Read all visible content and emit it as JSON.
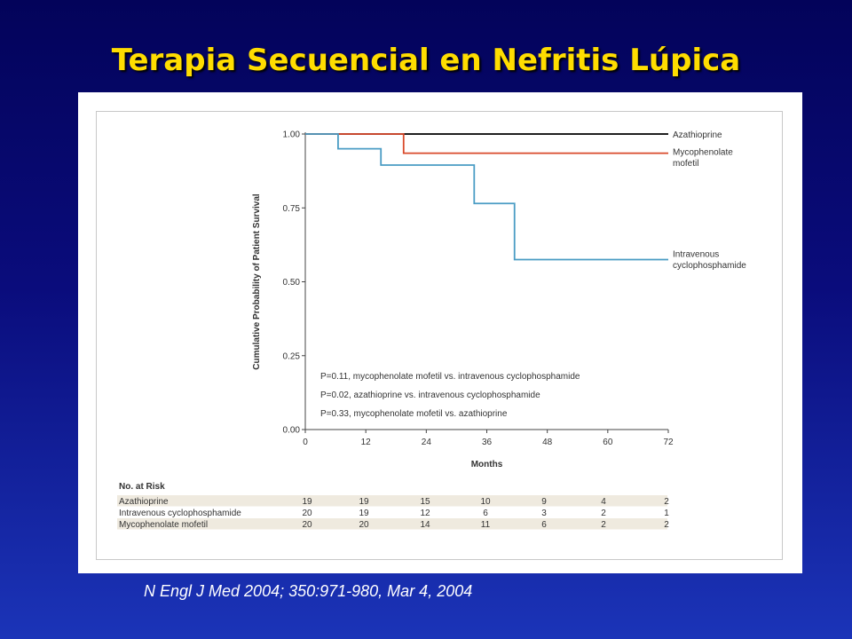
{
  "slide": {
    "title": "Terapia Secuencial en Nefritis Lúpica",
    "citation": "N Engl J Med 2004;  350:971-980, Mar 4, 2004"
  },
  "chart_data": {
    "type": "line",
    "xlabel": "Months",
    "ylabel": "Cumulative Probability of Patient Survival",
    "xlim": [
      0,
      72
    ],
    "ylim": [
      0,
      1.0
    ],
    "xticks": [
      "0",
      "12",
      "24",
      "36",
      "48",
      "60",
      "72"
    ],
    "yticks": [
      "0.00",
      "0.25",
      "0.50",
      "0.75",
      "1.00"
    ],
    "series": [
      {
        "name": "Azathioprine",
        "color": "#000000",
        "step": true,
        "x": [
          0,
          72
        ],
        "y": [
          1.0,
          1.0
        ]
      },
      {
        "name": "Mycophenolate mofetil",
        "color": "#d94a2b",
        "step": true,
        "x": [
          0,
          19.5,
          72
        ],
        "y": [
          1.0,
          0.935,
          0.935
        ]
      },
      {
        "name": "Intravenous cyclophosphamide",
        "color": "#4a9cc4",
        "step": true,
        "x": [
          0,
          6.5,
          15,
          33.5,
          41.5,
          72
        ],
        "y": [
          1.0,
          0.95,
          0.895,
          0.765,
          0.575,
          0.575
        ]
      }
    ],
    "line_labels": [
      {
        "lines": [
          "Azathioprine"
        ]
      },
      {
        "lines": [
          "Mycophenolate",
          "mofetil"
        ]
      },
      {
        "lines": [
          "Intravenous",
          "cyclophosphamide"
        ]
      }
    ],
    "annotations": [
      "P=0.11, mycophenolate mofetil vs. intravenous cyclophosphamide",
      "P=0.02, azathioprine vs. intravenous cyclophosphamide",
      "P=0.33, mycophenolate mofetil vs. azathioprine"
    ],
    "risk_table": {
      "title": "No. at Risk",
      "rows": [
        {
          "label": "Azathioprine",
          "values": [
            "19",
            "19",
            "15",
            "10",
            "9",
            "4",
            "2"
          ]
        },
        {
          "label": "Intravenous cyclophosphamide",
          "values": [
            "20",
            "19",
            "12",
            "6",
            "3",
            "2",
            "1"
          ]
        },
        {
          "label": "Mycophenolate mofetil",
          "values": [
            "20",
            "20",
            "14",
            "11",
            "6",
            "2",
            "2"
          ]
        }
      ]
    }
  }
}
